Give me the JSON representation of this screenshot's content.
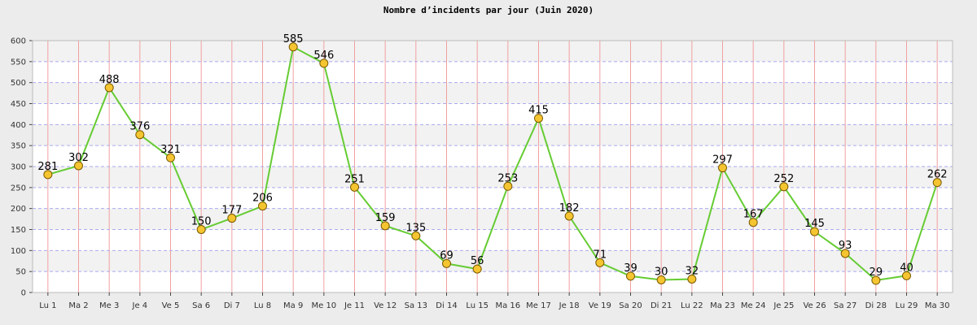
{
  "chart_data": {
    "type": "line",
    "title": "Nombre d’incidents par jour (Juin 2020)",
    "xlabel": "",
    "ylabel": "",
    "categories": [
      "Lu 1",
      "Ma 2",
      "Me 3",
      "Je 4",
      "Ve 5",
      "Sa 6",
      "Di 7",
      "Lu 8",
      "Ma 9",
      "Me 10",
      "Je 11",
      "Ve 12",
      "Sa 13",
      "Di 14",
      "Lu 15",
      "Ma 16",
      "Me 17",
      "Je 18",
      "Ve 19",
      "Sa 20",
      "Di 21",
      "Lu 22",
      "Ma 23",
      "Me 24",
      "Je 25",
      "Ve 26",
      "Sa 27",
      "Di 28",
      "Lu 29",
      "Ma 30"
    ],
    "series": [
      {
        "values": [
          281,
          302,
          488,
          376,
          321,
          150,
          177,
          206,
          585,
          546,
          251,
          159,
          135,
          69,
          56,
          253,
          415,
          182,
          71,
          39,
          30,
          32,
          297,
          167,
          252,
          145,
          93,
          29,
          40,
          262
        ]
      }
    ],
    "ylim": [
      0,
      600
    ],
    "yticks": [
      0,
      50,
      100,
      150,
      200,
      250,
      300,
      350,
      400,
      450,
      500,
      550,
      600
    ],
    "grid": true,
    "legend": "none",
    "colors": {
      "line": "#66cc33",
      "marker_fill": "#f5c531",
      "marker_stroke": "#7a5a00",
      "grid_horizontal": "#aaaaee",
      "grid_vertical": "#f2a0a0",
      "band_light": "#ffffff",
      "band_dark": "#f2f2f2",
      "background": "#ececec"
    }
  }
}
